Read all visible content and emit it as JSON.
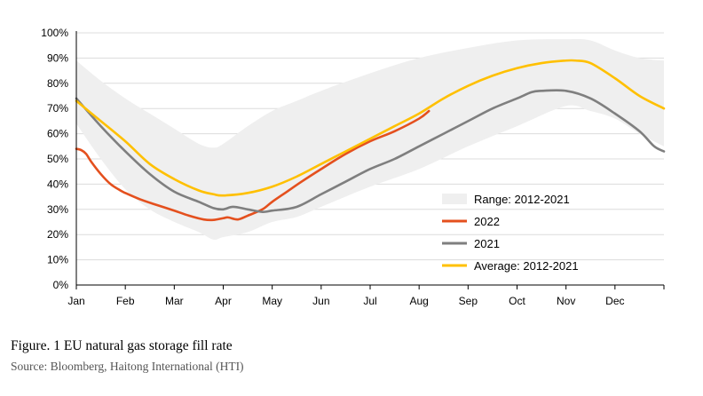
{
  "caption": {
    "title": "Figure. 1 EU natural gas storage fill rate",
    "source": "Source: Bloomberg, Haitong International (HTI)"
  },
  "chart_data": {
    "type": "line",
    "title": "Figure. 1 EU natural gas storage fill rate",
    "xlabel": "",
    "ylabel": "",
    "ylim": [
      0,
      100
    ],
    "y_ticks": [
      "0%",
      "10%",
      "20%",
      "30%",
      "40%",
      "50%",
      "60%",
      "70%",
      "80%",
      "90%",
      "100%"
    ],
    "x_ticks": [
      "Jan",
      "Feb",
      "Mar",
      "Apr",
      "May",
      "Jun",
      "Jul",
      "Aug",
      "Sep",
      "Oct",
      "Nov",
      "Dec"
    ],
    "x_unit": "month (0 = 1 Jan, 12 = 31 Dec)",
    "grid": "horizontal",
    "legend_position": "lower-right",
    "range": {
      "name": "Range: 2012-2021",
      "color": "#efefef",
      "x": [
        0,
        0.5,
        1,
        1.5,
        2,
        2.5,
        2.8,
        3,
        3.5,
        4,
        4.5,
        5,
        6,
        7,
        8,
        9,
        10,
        10.5,
        11,
        11.5,
        12
      ],
      "upper": [
        89,
        81,
        74,
        68,
        62,
        56,
        54.5,
        56,
        63,
        69,
        73,
        77,
        84,
        90,
        94,
        97,
        97.5,
        97,
        93,
        90,
        89
      ],
      "lower": [
        64,
        50,
        38,
        30,
        25,
        21,
        18,
        19,
        21,
        25,
        27,
        31,
        39,
        46,
        55,
        63,
        71,
        69,
        66,
        60,
        55
      ]
    },
    "series": [
      {
        "name": "2022",
        "color": "#e4501e",
        "x": [
          0,
          0.1,
          0.2,
          0.3,
          0.5,
          0.7,
          0.9,
          1,
          1.3,
          1.6,
          2,
          2.3,
          2.6,
          2.8,
          3,
          3.1,
          3.3,
          3.5,
          3.8,
          4,
          4.3,
          4.6,
          5,
          5.5,
          6,
          6.5,
          7,
          7.2
        ],
        "values": [
          54,
          53.5,
          52,
          49,
          44,
          40,
          37.5,
          36.5,
          34,
          32,
          29.5,
          27.5,
          26,
          25.8,
          26.5,
          26.8,
          26,
          27.5,
          30,
          33,
          37,
          41,
          46,
          52,
          57,
          61,
          66,
          69
        ]
      },
      {
        "name": "2021",
        "color": "#7f7f7f",
        "x": [
          0,
          0.5,
          1,
          1.5,
          2,
          2.5,
          2.8,
          3,
          3.2,
          3.5,
          3.8,
          4,
          4.5,
          5,
          5.5,
          6,
          6.5,
          7,
          7.5,
          8,
          8.5,
          9,
          9.3,
          9.5,
          10,
          10.5,
          11,
          11.5,
          11.8,
          12
        ],
        "values": [
          74,
          63,
          53,
          44,
          37,
          33,
          30.5,
          30,
          31,
          30,
          29,
          29.5,
          31,
          36,
          41,
          46,
          50,
          55,
          60,
          65,
          70,
          74,
          76.5,
          77,
          77,
          74,
          68,
          61,
          55,
          53
        ]
      },
      {
        "name": "Average: 2012-2021",
        "color": "#ffc000",
        "x": [
          0,
          0.5,
          1,
          1.5,
          2,
          2.5,
          2.8,
          3,
          3.5,
          4,
          4.5,
          5,
          5.5,
          6,
          6.5,
          7,
          7.5,
          8,
          8.5,
          9,
          9.5,
          10,
          10.2,
          10.5,
          11,
          11.5,
          12
        ],
        "values": [
          73,
          65,
          57,
          48,
          42,
          37.5,
          36,
          35.5,
          36.5,
          39,
          43,
          48,
          53,
          58,
          63,
          68,
          74,
          79,
          83,
          86,
          88,
          89,
          89,
          88,
          82,
          75,
          70
        ]
      }
    ]
  }
}
